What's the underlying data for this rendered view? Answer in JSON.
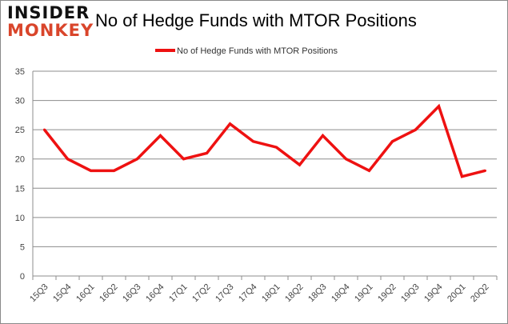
{
  "logo": {
    "line1": "INSIDER",
    "line2": "MONKEY"
  },
  "chart_data": {
    "type": "line",
    "title": "No of Hedge Funds with MTOR Positions",
    "categories": [
      "15Q3",
      "15Q4",
      "16Q1",
      "16Q2",
      "16Q3",
      "16Q4",
      "17Q1",
      "17Q2",
      "17Q3",
      "17Q4",
      "18Q1",
      "18Q2",
      "18Q3",
      "18Q4",
      "19Q1",
      "19Q2",
      "19Q3",
      "19Q4",
      "20Q1",
      "20Q2"
    ],
    "series": [
      {
        "name": "No of Hedge Funds with MTOR Positions",
        "color": "#ee1111",
        "values": [
          25,
          20,
          18,
          18,
          20,
          24,
          20,
          21,
          26,
          23,
          22,
          19,
          24,
          20,
          18,
          23,
          25,
          29,
          17,
          18
        ]
      }
    ],
    "yticks": [
      0,
      5,
      10,
      15,
      20,
      25,
      30,
      35
    ],
    "ylim": [
      0,
      35
    ],
    "grid": true,
    "legend": "top-center",
    "xlabel": "",
    "ylabel": ""
  }
}
